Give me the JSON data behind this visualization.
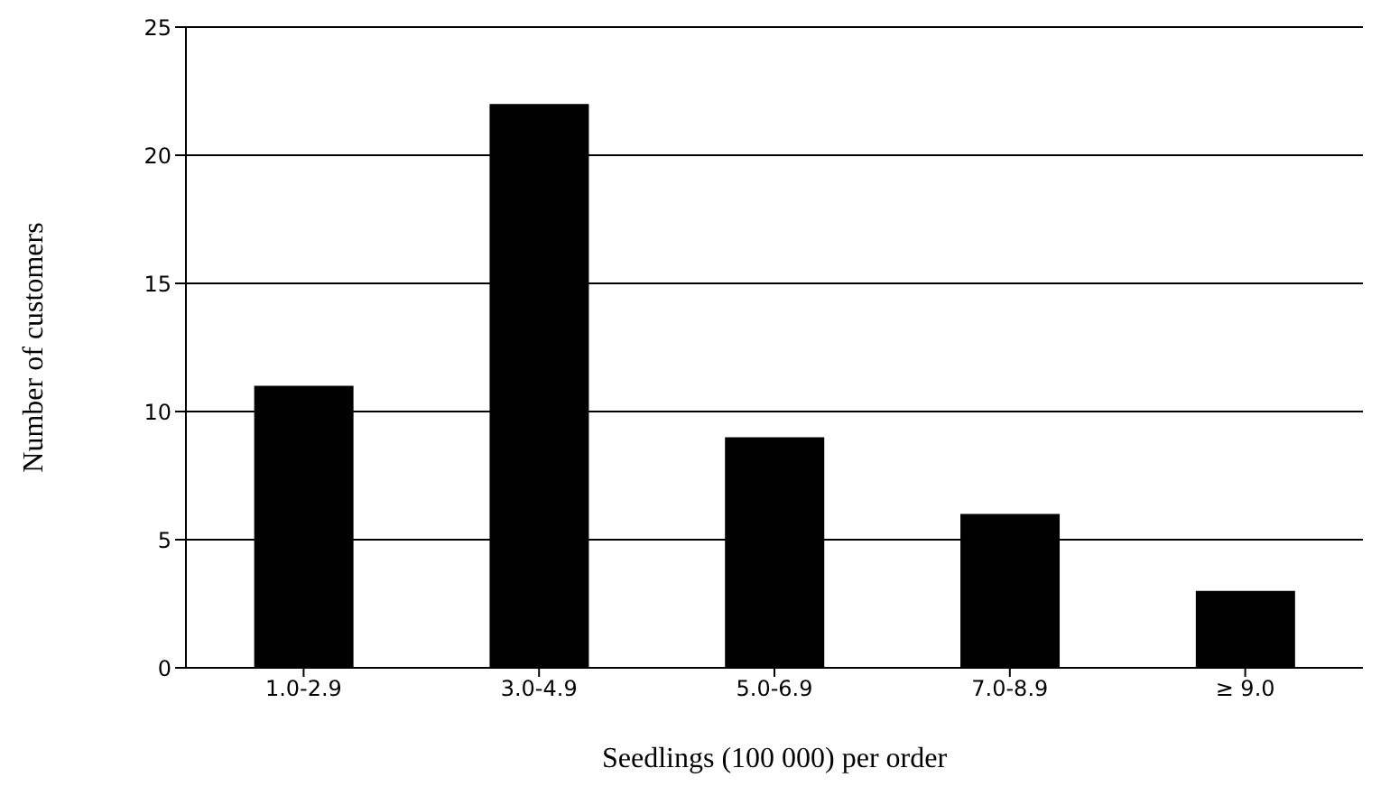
{
  "chart_data": {
    "type": "bar",
    "xlabel": "Seedlings (100 000) per order",
    "ylabel": "Number of customers",
    "categories": [
      "1.0-2.9",
      "3.0-4.9",
      "5.0-6.9",
      "7.0-8.9",
      "≥ 9.0"
    ],
    "values": [
      11,
      22,
      9,
      6,
      3
    ],
    "color": "#000000",
    "ylim": [
      0,
      25
    ],
    "yticks": [
      0,
      5,
      10,
      15,
      20,
      25
    ],
    "grid": "y",
    "legend": false
  }
}
